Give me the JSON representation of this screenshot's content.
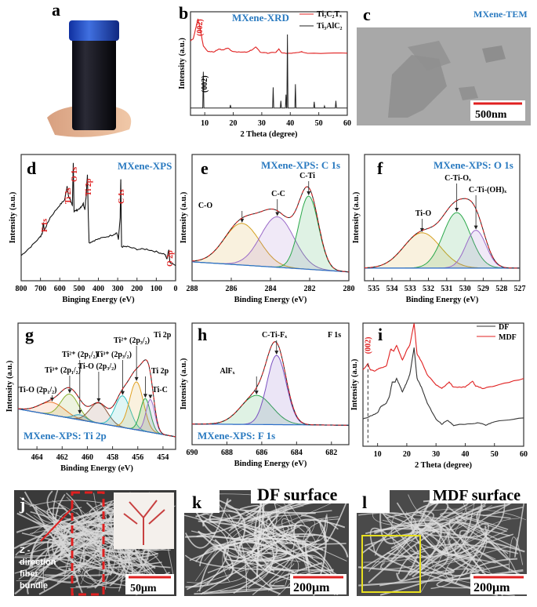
{
  "panels": {
    "a": {
      "letter": "a"
    },
    "b": {
      "letter": "b",
      "title": "MXene-XRD",
      "legend": [
        "Ti₃C₂Tₓ",
        "Ti₃AlC₂"
      ],
      "peak_label_red": "(002)",
      "peak_label_black": "(002)",
      "xlabel": "2 Theta (degree)",
      "ylabel": "Intensity (a.u.)"
    },
    "c": {
      "letter": "c",
      "title": "MXene-TEM",
      "scale": "500nm"
    },
    "d": {
      "letter": "d",
      "title": "MXene-XPS",
      "peaks": [
        "F 1s",
        "Ti 2s",
        "O 1s",
        "Ti 2p",
        "C 1s",
        "O 2p"
      ],
      "xlabel": "Binging Energy (eV)",
      "ylabel": "Intensity (a.u.)"
    },
    "e": {
      "letter": "e",
      "title": "MXene-XPS: C 1s",
      "xlabel": "Binding Energy (eV)",
      "ylabel": "Intensity (a.u.)"
    },
    "f": {
      "letter": "f",
      "title": "MXene-XPS: O 1s",
      "xlabel": "Binding Energy (eV)",
      "ylabel": "Intensity (a.u.)"
    },
    "g": {
      "letter": "g",
      "title": "MXene-XPS: Ti 2p",
      "corner": "Ti 2p",
      "xlabel": "Binding Energy (eV)",
      "ylabel": "Intensity (a.u.)"
    },
    "h": {
      "letter": "h",
      "title": "MXene-XPS: F 1s",
      "corner": "F 1s",
      "xlabel": "Binding Energy (eV)",
      "ylabel": "Intensity (a.u.)"
    },
    "i": {
      "letter": "i",
      "legend": [
        "DF",
        "MDF"
      ],
      "peak_label": "(002)",
      "xlabel": "2 Theta (degree)",
      "ylabel": "Intensity (a.u.)"
    },
    "j": {
      "letter": "j",
      "text": [
        "Z -",
        "direction",
        "fiber",
        "bundle"
      ],
      "scale": "50μm"
    },
    "k": {
      "letter": "k",
      "title": "DF surface",
      "scale": "200μm"
    },
    "l": {
      "letter": "l",
      "title": "MDF surface",
      "scale": "200μm"
    }
  },
  "colors": {
    "title_blue": "#2a7ac0",
    "red": "#e02020",
    "black": "#222222",
    "baseline": "#2d6fc9",
    "yellow_box": "#e8e020"
  },
  "chart_data": [
    {
      "panel": "b",
      "type": "line",
      "xlim": [
        5,
        60
      ],
      "xticks": [
        10,
        20,
        30,
        40,
        50,
        60
      ],
      "ylabel": "Intensity (a.u.)",
      "xlabel": "2 Theta (degree)",
      "series": [
        {
          "name": "Ti₃C₂Tₓ",
          "color": "#e02020",
          "points": [
            [
              5,
              0.72
            ],
            [
              6,
              0.74
            ],
            [
              7,
              0.86
            ],
            [
              7.6,
              0.93
            ],
            [
              8.3,
              0.85
            ],
            [
              9.5,
              0.67
            ],
            [
              11,
              0.62
            ],
            [
              13,
              0.61
            ],
            [
              15,
              0.64
            ],
            [
              16.5,
              0.63
            ],
            [
              18,
              0.65
            ],
            [
              19.5,
              0.62
            ],
            [
              22,
              0.61
            ],
            [
              25,
              0.61
            ],
            [
              27,
              0.64
            ],
            [
              28,
              0.66
            ],
            [
              29.5,
              0.61
            ],
            [
              32,
              0.6
            ],
            [
              35,
              0.61
            ],
            [
              36,
              0.64
            ],
            [
              37,
              0.6
            ],
            [
              40,
              0.6
            ],
            [
              43,
              0.61
            ],
            [
              44,
              0.615
            ],
            [
              46,
              0.6
            ],
            [
              60,
              0.6
            ]
          ]
        },
        {
          "name": "Ti₃AlC₂",
          "color": "#222222",
          "baseline": 0.07,
          "sticks": [
            [
              9.5,
              0.42
            ],
            [
              19,
              0.1
            ],
            [
              34,
              0.27
            ],
            [
              36.7,
              0.14
            ],
            [
              38.5,
              0.2
            ],
            [
              39,
              0.78
            ],
            [
              41.8,
              0.3
            ],
            [
              48.4,
              0.13
            ],
            [
              52,
              0.09
            ],
            [
              56,
              0.14
            ]
          ]
        }
      ]
    },
    {
      "panel": "d",
      "type": "line",
      "xlim": [
        800,
        0
      ],
      "xticks": [
        800,
        700,
        600,
        500,
        400,
        300,
        200,
        100,
        0
      ],
      "xlabel": "Binging Energy (eV)",
      "ylabel": "Intensity (a.u.)",
      "series": [
        {
          "color": "#111111",
          "points": [
            [
              800,
              0.2
            ],
            [
              750,
              0.27
            ],
            [
              700,
              0.35
            ],
            [
              690,
              0.38
            ],
            [
              685,
              0.46
            ],
            [
              680,
              0.4
            ],
            [
              650,
              0.5
            ],
            [
              600,
              0.6
            ],
            [
              575,
              0.64
            ],
            [
              562,
              0.75
            ],
            [
              555,
              0.67
            ],
            [
              545,
              0.64
            ],
            [
              535,
              0.6
            ],
            [
              530,
              0.93
            ],
            [
              526,
              0.55
            ],
            [
              510,
              0.56
            ],
            [
              490,
              0.58
            ],
            [
              478,
              0.61
            ],
            [
              470,
              0.56
            ],
            [
              462,
              0.7
            ],
            [
              457,
              0.84
            ],
            [
              452,
              0.5
            ],
            [
              448,
              0.3
            ],
            [
              420,
              0.32
            ],
            [
              380,
              0.34
            ],
            [
              330,
              0.36
            ],
            [
              305,
              0.38
            ],
            [
              296,
              0.33
            ],
            [
              287,
              0.5
            ],
            [
              284,
              0.8
            ],
            [
              280,
              0.27
            ],
            [
              250,
              0.27
            ],
            [
              200,
              0.25
            ],
            [
              150,
              0.25
            ],
            [
              100,
              0.23
            ],
            [
              55,
              0.21
            ],
            [
              45,
              0.17
            ],
            [
              35,
              0.25
            ],
            [
              30,
              0.15
            ],
            [
              0,
              0.12
            ]
          ]
        }
      ]
    },
    {
      "panel": "e",
      "type": "xps-fit",
      "xlim": [
        288,
        280
      ],
      "xticks": [
        288,
        286,
        284,
        282,
        280
      ],
      "xlabel": "Binding Energy (eV)",
      "background": [
        0.15,
        0.07
      ],
      "components": [
        {
          "label": "C-O",
          "center": 285.45,
          "amp": 0.33,
          "sigma": 0.9,
          "color": "#d4a020"
        },
        {
          "label": "C-C",
          "center": 283.65,
          "amp": 0.4,
          "sigma": 0.85,
          "color": "#9a6ac8"
        },
        {
          "label": "C-Ti",
          "center": 282.05,
          "amp": 0.58,
          "sigma": 0.5,
          "color": "#2aa84a"
        }
      ]
    },
    {
      "panel": "f",
      "type": "xps-fit",
      "xlim": [
        535.5,
        527
      ],
      "xticks": [
        535,
        534,
        533,
        532,
        531,
        530,
        529,
        528,
        527
      ],
      "xlabel": "Binding Energy (eV)",
      "background": [
        0.1,
        0.1
      ],
      "components": [
        {
          "label": "Ti-O",
          "center": 532.35,
          "amp": 0.28,
          "sigma": 1.0,
          "color": "#d4a020"
        },
        {
          "label": "C-Ti-Oₓ",
          "center": 530.45,
          "amp": 0.44,
          "sigma": 0.75,
          "color": "#2aa84a"
        },
        {
          "label": "C-Ti-(OH)ₓ",
          "center": 529.4,
          "amp": 0.3,
          "sigma": 0.55,
          "color": "#9a6ac8"
        }
      ]
    },
    {
      "panel": "g",
      "type": "xps-fit",
      "xlim": [
        465.5,
        453
      ],
      "xticks": [
        464,
        462,
        460,
        458,
        456,
        454
      ],
      "xlabel": "Binding Energy (eV)",
      "background": [
        0.32,
        0.1
      ],
      "components": [
        {
          "label": "Ti-O (2p₁/₂)",
          "center": 462.8,
          "amp": 0.1,
          "sigma": 1.0,
          "color": "#f07a30"
        },
        {
          "label": "Ti³⁺ (2p₁/₂)",
          "center": 461.4,
          "amp": 0.19,
          "sigma": 0.7,
          "color": "#8ab030"
        },
        {
          "label": "Ti²⁺ (2p₁/₂)",
          "center": 460.6,
          "amp": 0.04,
          "sigma": 0.5,
          "color": "#30a0c0"
        },
        {
          "label": "Ti-O (2p₃/₂)",
          "center": 459.1,
          "amp": 0.16,
          "sigma": 0.7,
          "color": "#8a5a40"
        },
        {
          "label": "Ti³⁺ (2p₃/₂)",
          "center": 457.2,
          "amp": 0.25,
          "sigma": 0.6,
          "color": "#30c0c0"
        },
        {
          "label": "Ti²⁺ (2p₃/₂)",
          "center": 456.1,
          "amp": 0.38,
          "sigma": 0.55,
          "color": "#e0a020"
        },
        {
          "label": "Ti 2p",
          "center": 455.4,
          "amp": 0.26,
          "sigma": 0.4,
          "color": "#2aa84a"
        },
        {
          "label": "Ti-C",
          "center": 455.0,
          "amp": 0.26,
          "sigma": 0.35,
          "color": "#9a6ac8"
        }
      ]
    },
    {
      "panel": "h",
      "type": "xps-fit",
      "xlim": [
        690,
        681
      ],
      "xticks": [
        690,
        688,
        686,
        684,
        682
      ],
      "xlabel": "Binding Energy (eV)",
      "background": [
        0.17,
        0.16
      ],
      "components": [
        {
          "label": "AlFₓ",
          "center": 686.3,
          "amp": 0.24,
          "sigma": 0.9,
          "color": "#2aa84a"
        },
        {
          "label": "C-Ti-Fₓ",
          "center": 685.15,
          "amp": 0.57,
          "sigma": 0.55,
          "color": "#7a50c0"
        }
      ]
    },
    {
      "panel": "i",
      "type": "line",
      "xlim": [
        5,
        60
      ],
      "xticks": [
        10,
        20,
        30,
        40,
        50,
        60
      ],
      "xlabel": "2 Theta (degree)",
      "ylabel": "Intensity (a.u.)",
      "legend": "top-right",
      "series": [
        {
          "name": "DF",
          "color": "#333333",
          "points": [
            [
              5,
              0.22
            ],
            [
              8,
              0.25
            ],
            [
              10,
              0.27
            ],
            [
              11,
              0.32
            ],
            [
              13,
              0.35
            ],
            [
              14,
              0.4
            ],
            [
              15,
              0.52
            ],
            [
              16,
              0.52
            ],
            [
              16.5,
              0.55
            ],
            [
              17.5,
              0.5
            ],
            [
              18.5,
              0.44
            ],
            [
              20,
              0.52
            ],
            [
              21,
              0.58
            ],
            [
              22.5,
              0.8
            ],
            [
              23.5,
              0.55
            ],
            [
              25,
              0.48
            ],
            [
              27,
              0.35
            ],
            [
              30,
              0.22
            ],
            [
              32,
              0.18
            ],
            [
              34,
              0.21
            ],
            [
              36,
              0.17
            ],
            [
              40,
              0.18
            ],
            [
              45,
              0.19
            ],
            [
              47,
              0.17
            ],
            [
              50,
              0.2
            ],
            [
              60,
              0.23
            ]
          ]
        },
        {
          "name": "MDF",
          "color": "#e02020",
          "points": [
            [
              5,
              0.62
            ],
            [
              6.7,
              0.67
            ],
            [
              7.5,
              0.62
            ],
            [
              9,
              0.61
            ],
            [
              10.5,
              0.63
            ],
            [
              13,
              0.65
            ],
            [
              14.5,
              0.79
            ],
            [
              15.5,
              0.77
            ],
            [
              16.5,
              0.82
            ],
            [
              18.5,
              0.7
            ],
            [
              20,
              0.78
            ],
            [
              21,
              0.82
            ],
            [
              22.5,
              1.0
            ],
            [
              23.5,
              0.75
            ],
            [
              25,
              0.69
            ],
            [
              27,
              0.58
            ],
            [
              30,
              0.5
            ],
            [
              32,
              0.47
            ],
            [
              34.5,
              0.52
            ],
            [
              36,
              0.48
            ],
            [
              40,
              0.48
            ],
            [
              42.5,
              0.53
            ],
            [
              43.5,
              0.49
            ],
            [
              46,
              0.47
            ],
            [
              50,
              0.49
            ],
            [
              60,
              0.55
            ]
          ]
        }
      ]
    }
  ]
}
